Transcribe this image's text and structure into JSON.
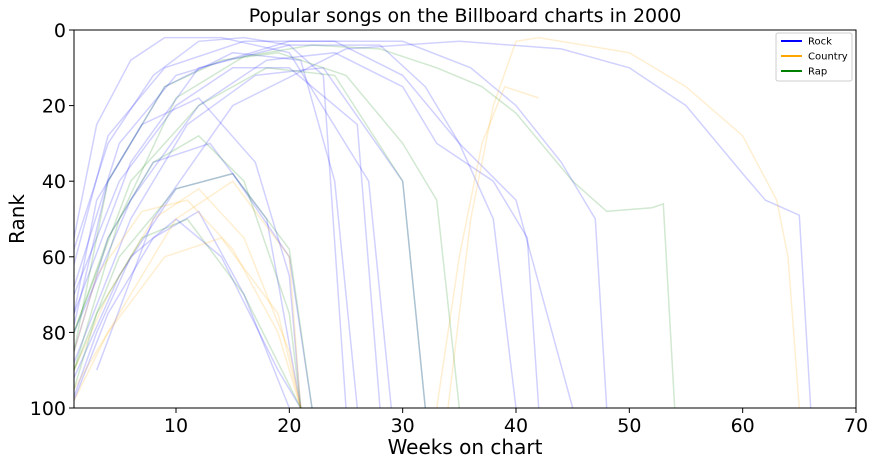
{
  "chart_data": {
    "type": "line",
    "title": "Popular songs on the Billboard charts in 2000",
    "xlabel": "Weeks on chart",
    "ylabel": "Rank",
    "xlim": [
      1,
      70
    ],
    "ylim": [
      100,
      0
    ],
    "y_inverted": true,
    "xticks": [
      10,
      20,
      30,
      40,
      50,
      60,
      70
    ],
    "xtick_labels": [
      "10",
      "20",
      "30",
      "40",
      "50",
      "60",
      "70"
    ],
    "yticks": [
      0,
      20,
      40,
      60,
      80,
      100
    ],
    "ytick_labels": [
      "0",
      "20",
      "40",
      "60",
      "80",
      "100"
    ],
    "grid": false,
    "legend_position": "top-right",
    "legend": [
      {
        "name": "Rock",
        "color": "#0000ff"
      },
      {
        "name": "Country",
        "color": "#ffa500"
      },
      {
        "name": "Rap",
        "color": "#008000"
      }
    ],
    "series_style": {
      "alpha": 0.18,
      "line_width": 1.5
    },
    "representative_series": [
      {
        "genre": "Rock",
        "x": [
          1,
          4,
          8,
          12,
          16,
          20,
          23,
          25
        ],
        "y": [
          58,
          30,
          12,
          3,
          2,
          4,
          12,
          100
        ]
      },
      {
        "genre": "Rock",
        "x": [
          1,
          5,
          10,
          15,
          20,
          26,
          28
        ],
        "y": [
          70,
          40,
          20,
          10,
          10,
          25,
          100
        ]
      },
      {
        "genre": "Rock",
        "x": [
          1,
          3,
          6,
          9,
          14,
          20,
          27,
          29
        ],
        "y": [
          55,
          25,
          8,
          2,
          2,
          6,
          40,
          100
        ]
      },
      {
        "genre": "Rock",
        "x": [
          1,
          6,
          12,
          18,
          24,
          30,
          33,
          38,
          41,
          42
        ],
        "y": [
          80,
          45,
          20,
          8,
          6,
          15,
          30,
          40,
          55,
          100
        ]
      },
      {
        "genre": "Rock",
        "x": [
          1,
          6,
          12,
          20,
          28,
          32,
          35,
          38,
          40
        ],
        "y": [
          75,
          35,
          10,
          4,
          4,
          15,
          30,
          50,
          100
        ]
      },
      {
        "genre": "Rock",
        "x": [
          1,
          5,
          10,
          20,
          30,
          36,
          40,
          44,
          47,
          48
        ],
        "y": [
          68,
          30,
          12,
          3,
          3,
          10,
          20,
          35,
          50,
          100
        ]
      },
      {
        "genre": "Rock",
        "x": [
          1,
          4,
          9,
          16,
          24,
          30,
          35,
          40,
          45
        ],
        "y": [
          62,
          28,
          10,
          3,
          3,
          12,
          30,
          45,
          100
        ]
      },
      {
        "genre": "Rock",
        "x": [
          3,
          8,
          15,
          25,
          35,
          44,
          50,
          55,
          60,
          62,
          65,
          66
        ],
        "y": [
          90,
          50,
          20,
          5,
          3,
          5,
          10,
          20,
          38,
          45,
          49,
          100
        ]
      },
      {
        "genre": "Rock",
        "x": [
          1,
          4,
          8,
          13,
          18,
          21
        ],
        "y": [
          85,
          55,
          35,
          30,
          50,
          100
        ]
      },
      {
        "genre": "Rock",
        "x": [
          1,
          5,
          10,
          15,
          20,
          22
        ],
        "y": [
          92,
          65,
          42,
          38,
          60,
          100
        ]
      },
      {
        "genre": "Rock",
        "x": [
          1,
          3,
          7,
          12,
          17,
          20,
          21
        ],
        "y": [
          75,
          45,
          25,
          18,
          35,
          65,
          100
        ]
      },
      {
        "genre": "Rock",
        "x": [
          1,
          4,
          9,
          15,
          21,
          24,
          26
        ],
        "y": [
          78,
          40,
          15,
          6,
          8,
          40,
          100
        ]
      },
      {
        "genre": "Rock",
        "x": [
          1,
          6,
          11,
          17,
          23,
          30,
          32
        ],
        "y": [
          88,
          50,
          25,
          12,
          10,
          40,
          100
        ]
      },
      {
        "genre": "Rock",
        "x": [
          1,
          3,
          6,
          10,
          14,
          19,
          21
        ],
        "y": [
          97,
          80,
          60,
          50,
          60,
          90,
          100
        ]
      },
      {
        "genre": "Rock",
        "x": [
          1,
          4,
          8,
          12,
          16,
          20
        ],
        "y": [
          98,
          75,
          55,
          48,
          70,
          100
        ]
      },
      {
        "genre": "Country",
        "x": [
          34,
          36,
          38,
          40,
          42,
          46,
          50,
          55,
          60,
          63,
          64,
          65
        ],
        "y": [
          100,
          50,
          20,
          3,
          2,
          4,
          6,
          15,
          28,
          45,
          60,
          100
        ]
      },
      {
        "genre": "Country",
        "x": [
          33,
          35,
          37,
          39,
          42
        ],
        "y": [
          100,
          60,
          30,
          15,
          18
        ]
      },
      {
        "genre": "Country",
        "x": [
          1,
          4,
          8,
          12,
          16,
          20,
          21
        ],
        "y": [
          90,
          70,
          50,
          42,
          55,
          85,
          100
        ]
      },
      {
        "genre": "Country",
        "x": [
          1,
          5,
          10,
          15,
          20,
          21
        ],
        "y": [
          95,
          75,
          50,
          40,
          60,
          100
        ]
      },
      {
        "genre": "Country",
        "x": [
          1,
          3,
          7,
          11,
          15,
          19,
          21
        ],
        "y": [
          85,
          65,
          48,
          45,
          58,
          80,
          100
        ]
      },
      {
        "genre": "Country",
        "x": [
          1,
          4,
          9,
          14,
          19,
          21
        ],
        "y": [
          98,
          80,
          60,
          55,
          75,
          100
        ]
      },
      {
        "genre": "Rap",
        "x": [
          1,
          5,
          10,
          16,
          22,
          28,
          33,
          37,
          40,
          45,
          48,
          52,
          53,
          54
        ],
        "y": [
          90,
          50,
          18,
          7,
          4,
          5,
          10,
          15,
          22,
          40,
          48,
          47,
          46,
          100
        ]
      },
      {
        "genre": "Rap",
        "x": [
          1,
          4,
          9,
          14,
          19,
          25,
          30,
          33,
          35
        ],
        "y": [
          85,
          40,
          15,
          8,
          6,
          12,
          30,
          45,
          100
        ]
      },
      {
        "genre": "Rap",
        "x": [
          1,
          4,
          8,
          12,
          16,
          20,
          21
        ],
        "y": [
          80,
          55,
          35,
          28,
          40,
          75,
          100
        ]
      },
      {
        "genre": "Rap",
        "x": [
          1,
          5,
          10,
          15,
          20,
          22
        ],
        "y": [
          90,
          60,
          42,
          38,
          58,
          100
        ]
      },
      {
        "genre": "Rap",
        "x": [
          1,
          3,
          7,
          11,
          16,
          21
        ],
        "y": [
          95,
          75,
          55,
          50,
          70,
          100
        ]
      },
      {
        "genre": "Rap",
        "x": [
          1,
          6,
          12,
          18,
          24,
          30,
          32
        ],
        "y": [
          80,
          40,
          20,
          10,
          12,
          40,
          100
        ]
      }
    ]
  }
}
